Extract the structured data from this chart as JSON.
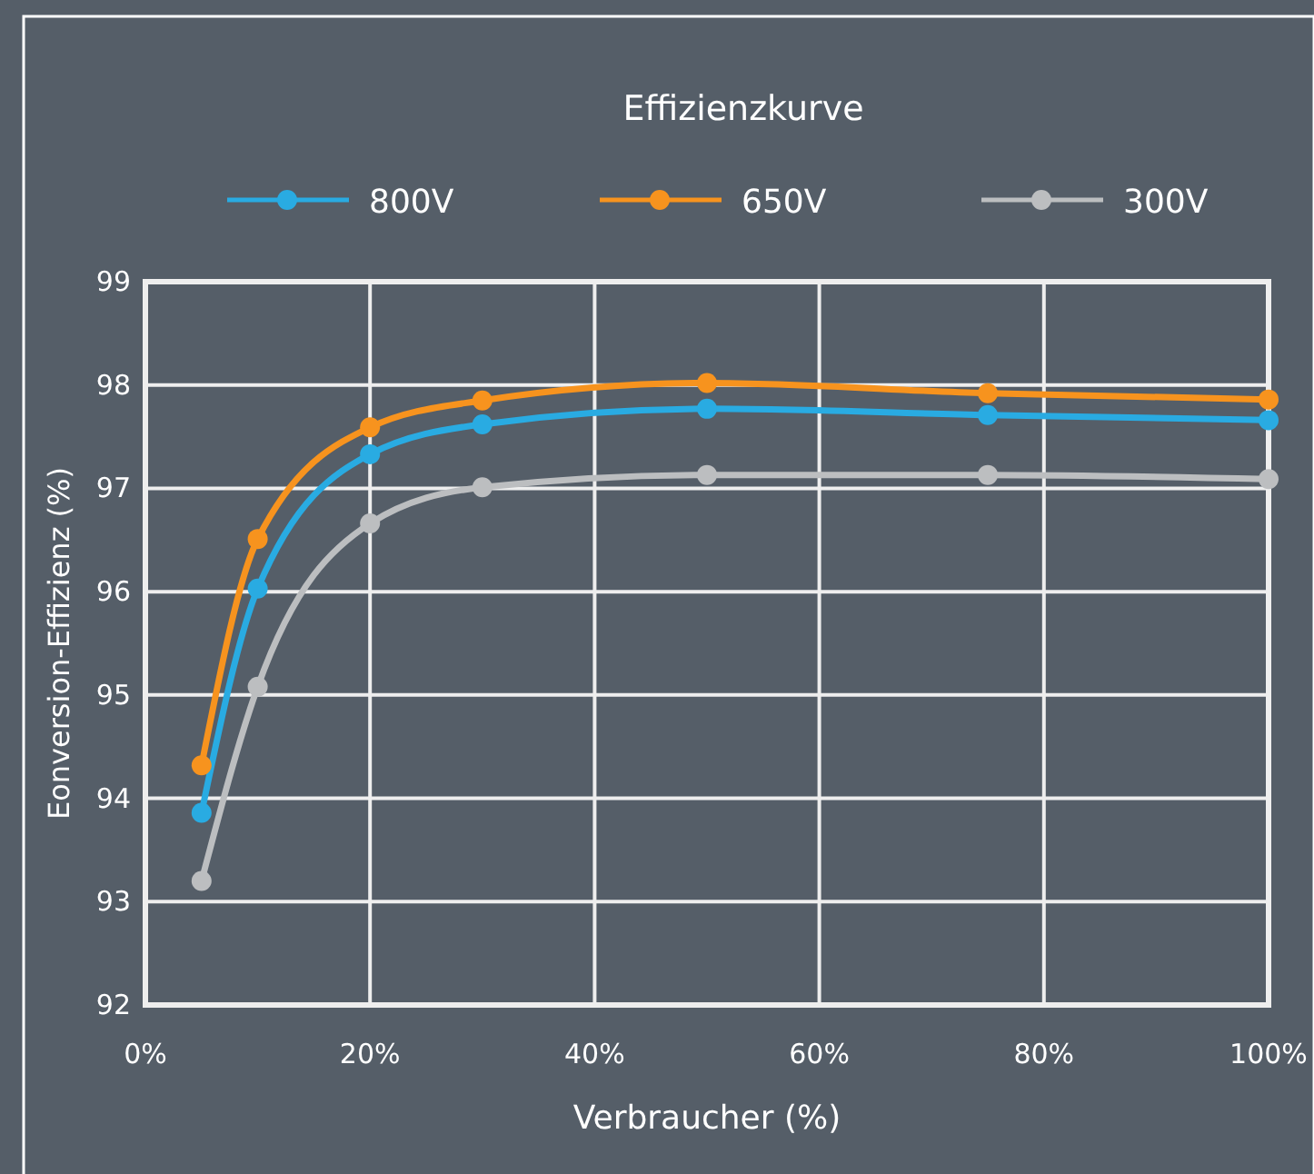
{
  "chart_data": {
    "type": "line",
    "title": "Effizienzkurve",
    "xlabel": "Verbraucher (%)",
    "ylabel": "Eonversion-Effizienz (%)",
    "x": [
      5,
      10,
      20,
      30,
      50,
      75,
      100
    ],
    "xlim": [
      0,
      100
    ],
    "xticks": [
      {
        "value": 0,
        "label": "0%"
      },
      {
        "value": 20,
        "label": "20%"
      },
      {
        "value": 40,
        "label": "40%"
      },
      {
        "value": 60,
        "label": "60%"
      },
      {
        "value": 80,
        "label": "80%"
      },
      {
        "value": 100,
        "label": "100%"
      }
    ],
    "ylim": [
      92,
      99
    ],
    "yticks": [
      92,
      93,
      94,
      95,
      96,
      97,
      98,
      99
    ],
    "grid": true,
    "legend": "top",
    "marker": "circle",
    "line_style": "solid",
    "series": [
      {
        "name": "800V",
        "color": "#29abe2",
        "values": [
          93.86,
          96.03,
          97.33,
          97.62,
          97.77,
          97.71,
          97.66
        ]
      },
      {
        "name": "650V",
        "color": "#f7931e",
        "values": [
          94.32,
          96.51,
          97.59,
          97.85,
          98.02,
          97.92,
          97.86
        ]
      },
      {
        "name": "300V",
        "color": "#bcbec0",
        "values": [
          93.2,
          95.08,
          96.66,
          97.01,
          97.13,
          97.13,
          97.09
        ]
      }
    ]
  }
}
